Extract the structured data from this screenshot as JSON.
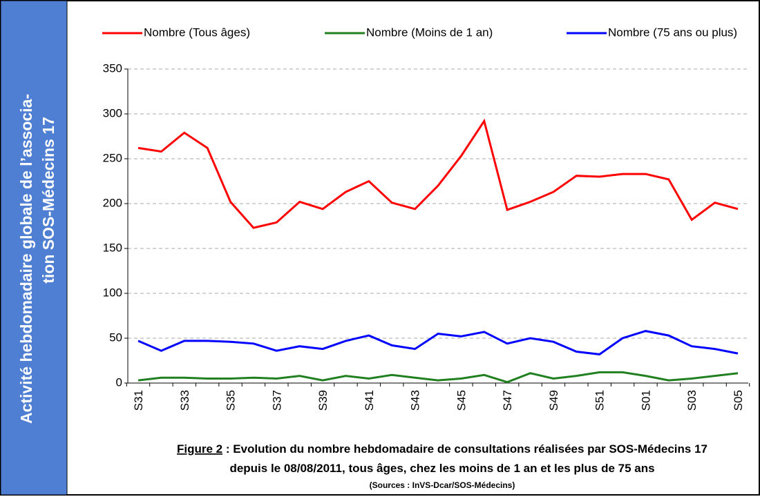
{
  "sidebar": {
    "lines": [
      "Activité hebdomadaire globale de l’associa-",
      "tion SOS-Médecins 17"
    ]
  },
  "chart_data": {
    "type": "line",
    "categories": [
      "S31",
      null,
      "S33",
      null,
      "S35",
      null,
      "S37",
      null,
      "S39",
      null,
      "S41",
      null,
      "S43",
      null,
      "S45",
      null,
      "S47",
      null,
      "S49",
      null,
      "S51",
      null,
      "S01",
      null,
      "S03",
      null,
      "S05"
    ],
    "series": [
      {
        "name": "Nombre (Tous âges)",
        "color": "#ff0000",
        "values": [
          262,
          258,
          279,
          262,
          202,
          173,
          179,
          202,
          194,
          213,
          225,
          201,
          194,
          220,
          253,
          292,
          193,
          202,
          213,
          231,
          230,
          233,
          233,
          227,
          182,
          201,
          194
        ]
      },
      {
        "name": "Nombre (Moins de 1 an)",
        "color": "#208020",
        "values": [
          3,
          6,
          6,
          5,
          5,
          6,
          5,
          8,
          3,
          8,
          5,
          9,
          6,
          3,
          5,
          9,
          1,
          11,
          5,
          8,
          12,
          12,
          8,
          3,
          5,
          8,
          11
        ]
      },
      {
        "name": "Nombre (75 ans ou plus)",
        "color": "#0000ff",
        "values": [
          47,
          36,
          47,
          47,
          46,
          44,
          36,
          41,
          38,
          47,
          53,
          42,
          38,
          55,
          52,
          57,
          44,
          50,
          46,
          35,
          32,
          50,
          58,
          53,
          41,
          38,
          33
        ]
      }
    ],
    "ylim": [
      0,
      350
    ],
    "yticks": [
      0,
      50,
      100,
      150,
      200,
      250,
      300,
      350
    ],
    "grid": true,
    "caption": {
      "label": "Figure 2",
      "line1": " : Evolution du nombre hebdomadaire de consultations réalisées par SOS-Médecins 17",
      "line2": "depuis le 08/08/2011, tous âges, chez les moins de 1 an et les plus de 75 ans",
      "source": "(Sources : InVS-Dcar/SOS-Médecins)"
    }
  }
}
